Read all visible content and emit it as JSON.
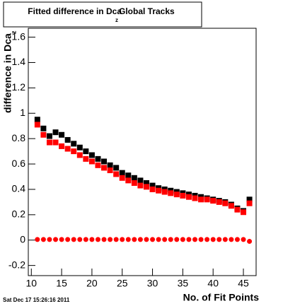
{
  "chart_data": {
    "type": "scatter",
    "title": [
      "Fitted difference in Dca",
      "z",
      "Global Tracks"
    ],
    "y_label": [
      "difference in Dca",
      "z"
    ],
    "x_label": "No. of Fit Points",
    "footer": "Sat Dec 17 15:26:16 2011",
    "x": [
      11,
      12,
      13,
      14,
      15,
      16,
      17,
      18,
      19,
      20,
      21,
      22,
      23,
      24,
      25,
      26,
      27,
      28,
      29,
      30,
      31,
      32,
      33,
      34,
      35,
      36,
      37,
      38,
      39,
      40,
      41,
      42,
      43,
      44,
      45,
      46
    ],
    "series": [
      {
        "color": "#000000",
        "marker": "square",
        "values": [
          0.95,
          0.88,
          0.82,
          0.85,
          0.83,
          0.79,
          0.76,
          0.73,
          0.7,
          0.67,
          0.64,
          0.62,
          0.59,
          0.57,
          0.53,
          0.51,
          0.49,
          0.47,
          0.45,
          0.43,
          0.41,
          0.4,
          0.39,
          0.38,
          0.37,
          0.36,
          0.35,
          0.34,
          0.33,
          0.32,
          0.31,
          0.3,
          0.28,
          0.25,
          0.23,
          0.32
        ]
      },
      {
        "color": "#ff0000",
        "marker": "square",
        "values": [
          0.91,
          0.83,
          0.77,
          0.77,
          0.74,
          0.72,
          0.7,
          0.67,
          0.64,
          0.62,
          0.59,
          0.57,
          0.55,
          0.52,
          0.49,
          0.47,
          0.45,
          0.43,
          0.42,
          0.4,
          0.39,
          0.38,
          0.37,
          0.36,
          0.35,
          0.34,
          0.33,
          0.32,
          0.32,
          0.31,
          0.3,
          0.29,
          0.27,
          0.24,
          0.22,
          0.29
        ]
      },
      {
        "color": "#ff0000",
        "marker": "circle",
        "values": [
          0.005,
          0.005,
          0.005,
          0.005,
          0.005,
          0.005,
          0.005,
          0.005,
          0.005,
          0.005,
          0.005,
          0.005,
          0.005,
          0.005,
          0.005,
          0.005,
          0.005,
          0.005,
          0.005,
          0.005,
          0.005,
          0.005,
          0.005,
          0.005,
          0.005,
          0.005,
          0.005,
          0.005,
          0.005,
          0.005,
          0.005,
          0.005,
          0.005,
          0.005,
          0.005,
          -0.01
        ]
      }
    ],
    "xlim": [
      9.5,
      47.1
    ],
    "ylim": [
      -0.28,
      1.67
    ],
    "xticks": [
      10,
      15,
      20,
      25,
      30,
      35,
      40,
      45
    ],
    "yticks": [
      -0.2,
      0,
      0.2,
      0.4,
      0.6,
      0.8,
      1,
      1.2,
      1.4,
      1.6
    ]
  }
}
